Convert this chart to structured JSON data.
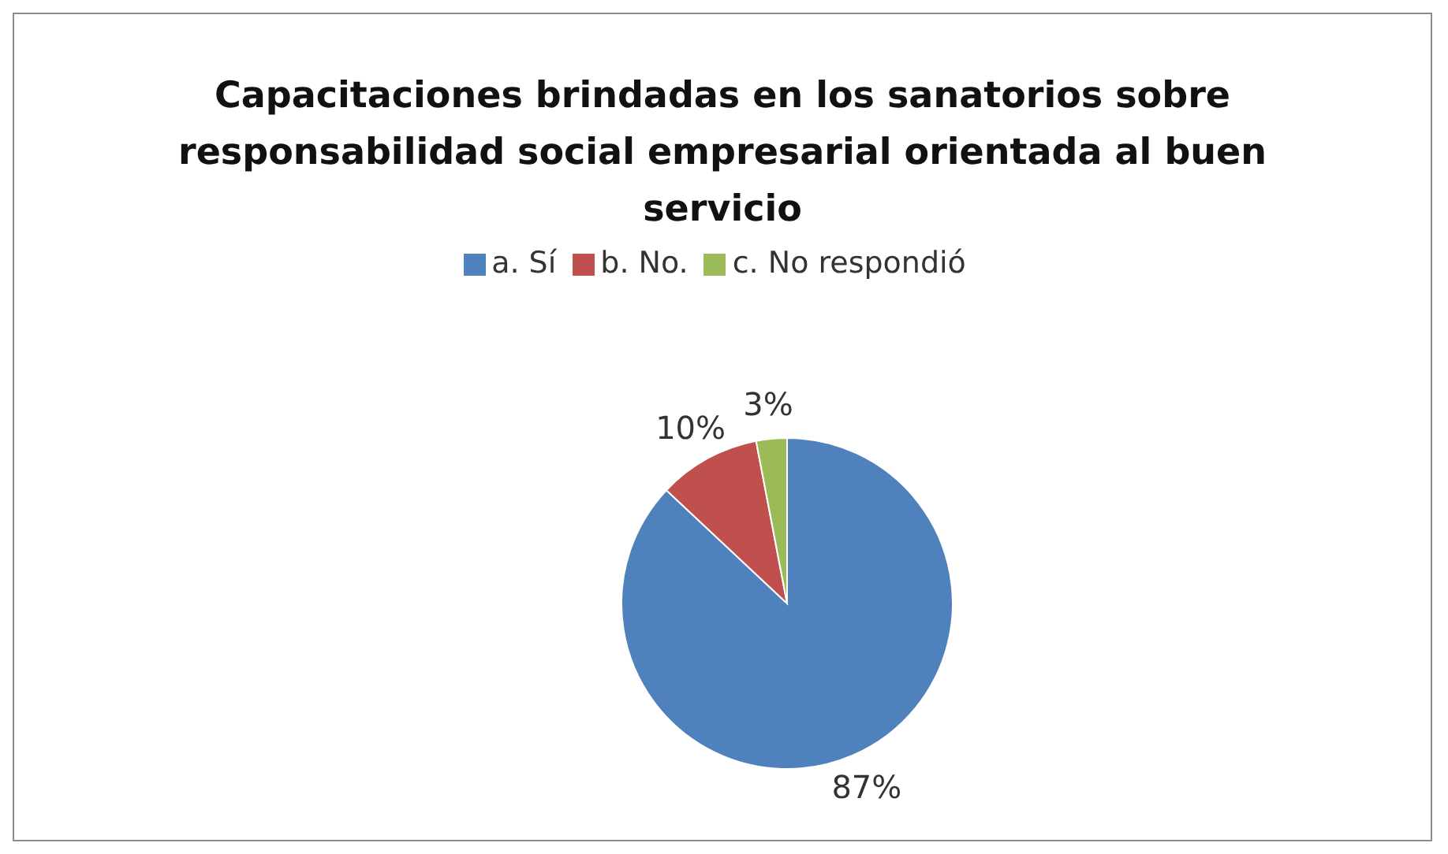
{
  "chart_data": {
    "type": "pie",
    "title": "Capacitaciones brindadas en los sanatorios sobre responsabilidad social empresarial orientada al buen servicio",
    "categories": [
      "a. Sí",
      "b. No.",
      "c. No respondió"
    ],
    "values": [
      87,
      10,
      3
    ],
    "colors": [
      "#4f81bd",
      "#c0504d",
      "#9bbb59"
    ],
    "value_labels": [
      "87%",
      "10%",
      "3%"
    ],
    "legend": "top"
  }
}
